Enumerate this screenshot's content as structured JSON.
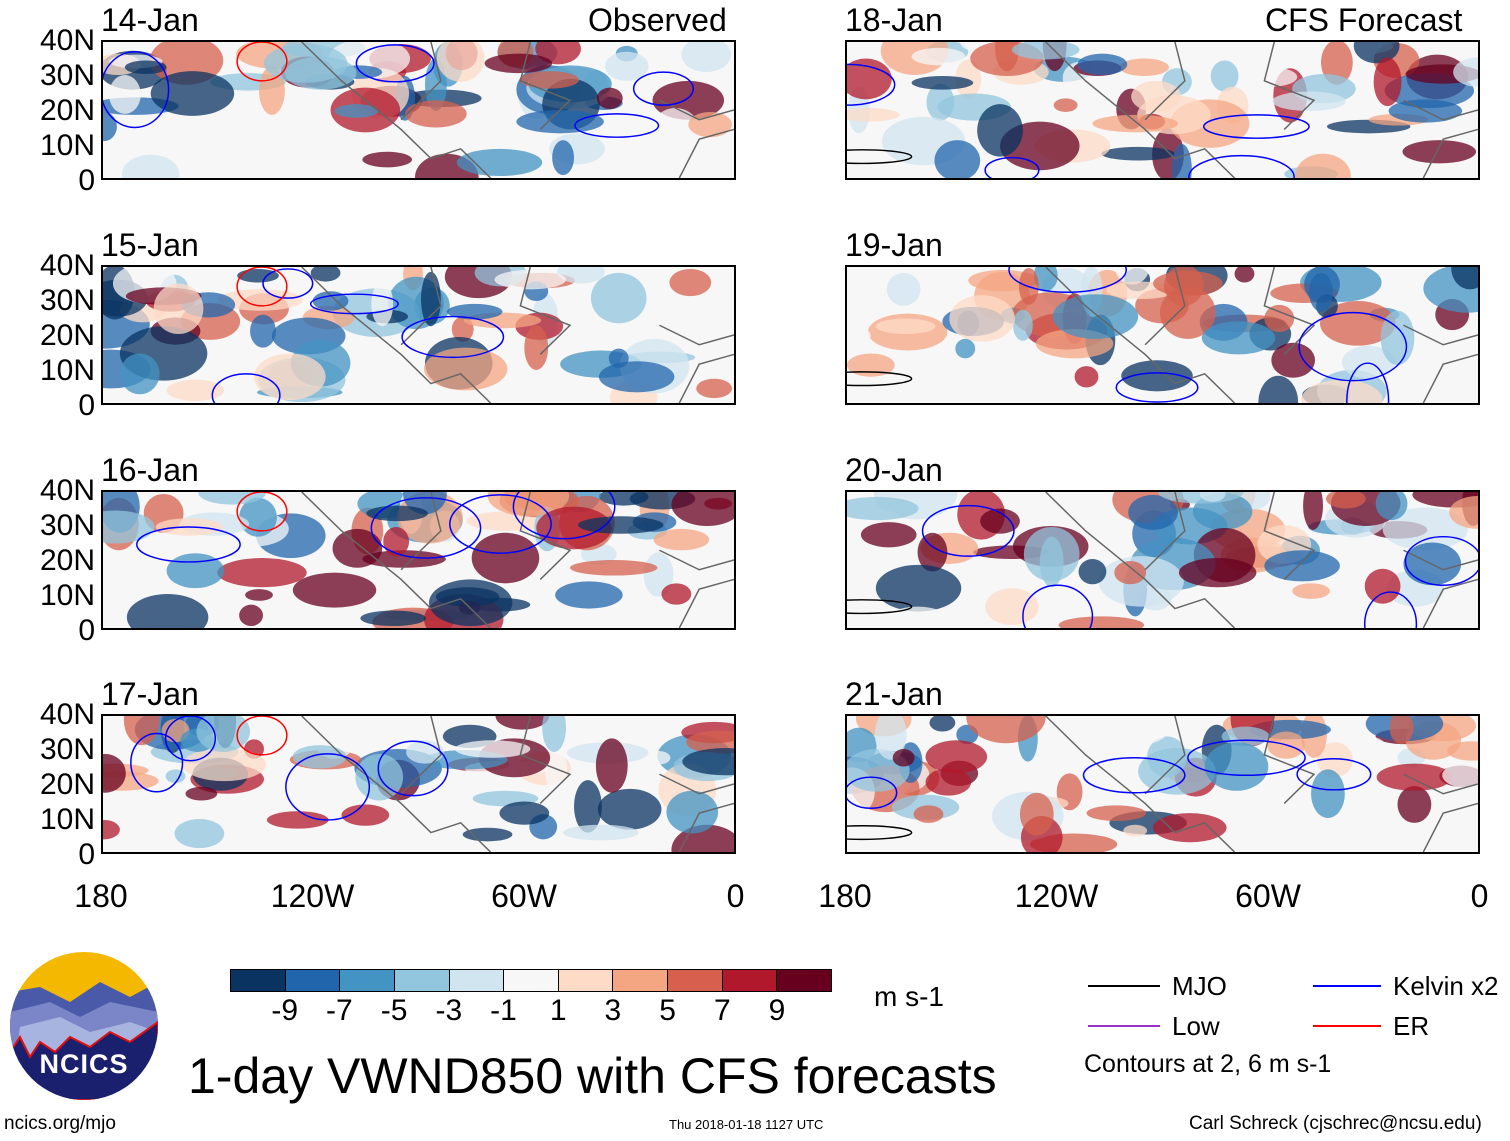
{
  "figure": {
    "title": "1-day VWND850 with CFS forecasts",
    "left_column_label": "Observed",
    "right_column_label": "CFS Forecast",
    "logo_text": "NCICS",
    "url": "ncics.org/mjo",
    "timestamp": "Thu 2018-01-18 1127 UTC",
    "credit": "Carl Schreck (cjschrec@ncsu.edu)"
  },
  "panels": [
    {
      "date": "14-Jan",
      "column": "observed"
    },
    {
      "date": "15-Jan",
      "column": "observed"
    },
    {
      "date": "16-Jan",
      "column": "observed"
    },
    {
      "date": "17-Jan",
      "column": "observed"
    },
    {
      "date": "18-Jan",
      "column": "forecast"
    },
    {
      "date": "19-Jan",
      "column": "forecast"
    },
    {
      "date": "20-Jan",
      "column": "forecast"
    },
    {
      "date": "21-Jan",
      "column": "forecast"
    }
  ],
  "axes": {
    "lat_ticks": [
      "40N",
      "30N",
      "20N",
      "10N",
      "0"
    ],
    "lon_ticks": [
      "180",
      "120W",
      "60W",
      "0"
    ]
  },
  "colorbar": {
    "units": "m s-1",
    "labels": [
      "-9",
      "-7",
      "-5",
      "-3",
      "-1",
      "1",
      "3",
      "5",
      "7",
      "9"
    ],
    "colors": [
      "#0a3361",
      "#2166ac",
      "#4393c3",
      "#92c5de",
      "#d1e5f0",
      "#f7f7f7",
      "#fddbc7",
      "#f4a582",
      "#d6604d",
      "#b2182b",
      "#67001f"
    ]
  },
  "legend": {
    "items": [
      {
        "label": "MJO",
        "color": "#000000"
      },
      {
        "label": "Kelvin x2",
        "color": "#0000ff"
      },
      {
        "label": "Low",
        "color": "#9933cc"
      },
      {
        "label": "ER",
        "color": "#ff0000"
      }
    ],
    "note": "Contours at 2, 6 m s-1"
  }
}
